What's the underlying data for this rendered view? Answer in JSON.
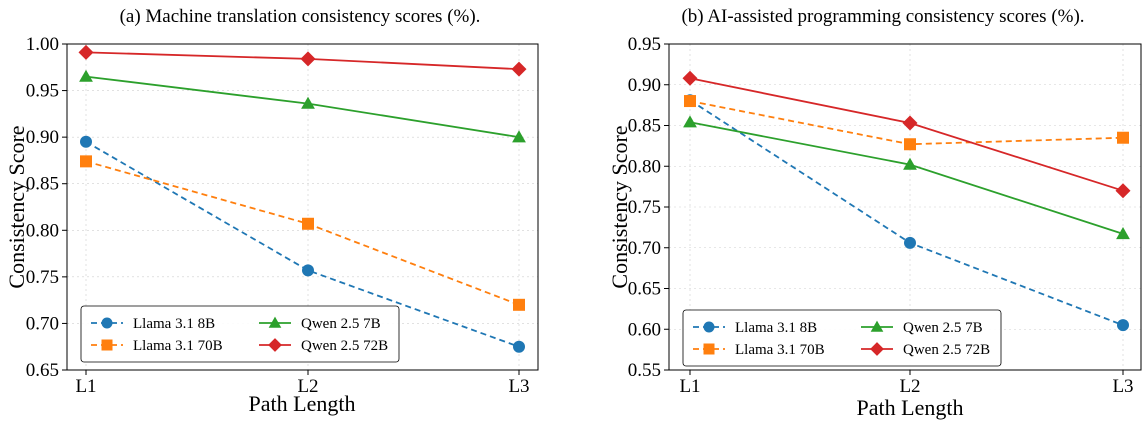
{
  "chart_data": [
    {
      "type": "line",
      "title": "(a) Machine translation consistency scores (%).",
      "xlabel": "Path Length",
      "ylabel": "Consistency Score",
      "categories": [
        "L1",
        "L2",
        "L3"
      ],
      "ylim": [
        0.65,
        1.0
      ],
      "yticks": [
        "0.65",
        "0.70",
        "0.75",
        "0.80",
        "0.85",
        "0.90",
        "0.95",
        "1.00"
      ],
      "grid": true,
      "legend_position": "lower-left",
      "series": [
        {
          "name": "Llama 3.1 8B",
          "values": [
            0.895,
            0.757,
            0.675
          ],
          "color": "#1f77b4",
          "dash": "dashed",
          "marker": "circle"
        },
        {
          "name": "Llama 3.1 70B",
          "values": [
            0.874,
            0.807,
            0.72
          ],
          "color": "#ff7f0e",
          "dash": "dashed",
          "marker": "square"
        },
        {
          "name": "Qwen 2.5 7B",
          "values": [
            0.965,
            0.936,
            0.9
          ],
          "color": "#2ca02c",
          "dash": "solid",
          "marker": "triangle"
        },
        {
          "name": "Qwen 2.5 72B",
          "values": [
            0.991,
            0.984,
            0.973
          ],
          "color": "#d62728",
          "dash": "solid",
          "marker": "diamond"
        }
      ]
    },
    {
      "type": "line",
      "title": "(b) AI-assisted programming consistency scores (%).",
      "xlabel": "Path Length",
      "ylabel": "Consistency Score",
      "categories": [
        "L1",
        "L2",
        "L3"
      ],
      "ylim": [
        0.55,
        0.95
      ],
      "yticks": [
        "0.55",
        "0.60",
        "0.65",
        "0.70",
        "0.75",
        "0.80",
        "0.85",
        "0.90",
        "0.95"
      ],
      "grid": true,
      "legend_position": "lower-left",
      "series": [
        {
          "name": "Llama 3.1 8B",
          "values": [
            0.881,
            0.706,
            0.605
          ],
          "color": "#1f77b4",
          "dash": "dashed",
          "marker": "circle"
        },
        {
          "name": "Llama 3.1 70B",
          "values": [
            0.88,
            0.827,
            0.835
          ],
          "color": "#ff7f0e",
          "dash": "dashed",
          "marker": "square"
        },
        {
          "name": "Qwen 2.5 7B",
          "values": [
            0.854,
            0.802,
            0.717
          ],
          "color": "#2ca02c",
          "dash": "solid",
          "marker": "triangle"
        },
        {
          "name": "Qwen 2.5 72B",
          "values": [
            0.908,
            0.853,
            0.77
          ],
          "color": "#d62728",
          "dash": "solid",
          "marker": "diamond"
        }
      ]
    }
  ]
}
